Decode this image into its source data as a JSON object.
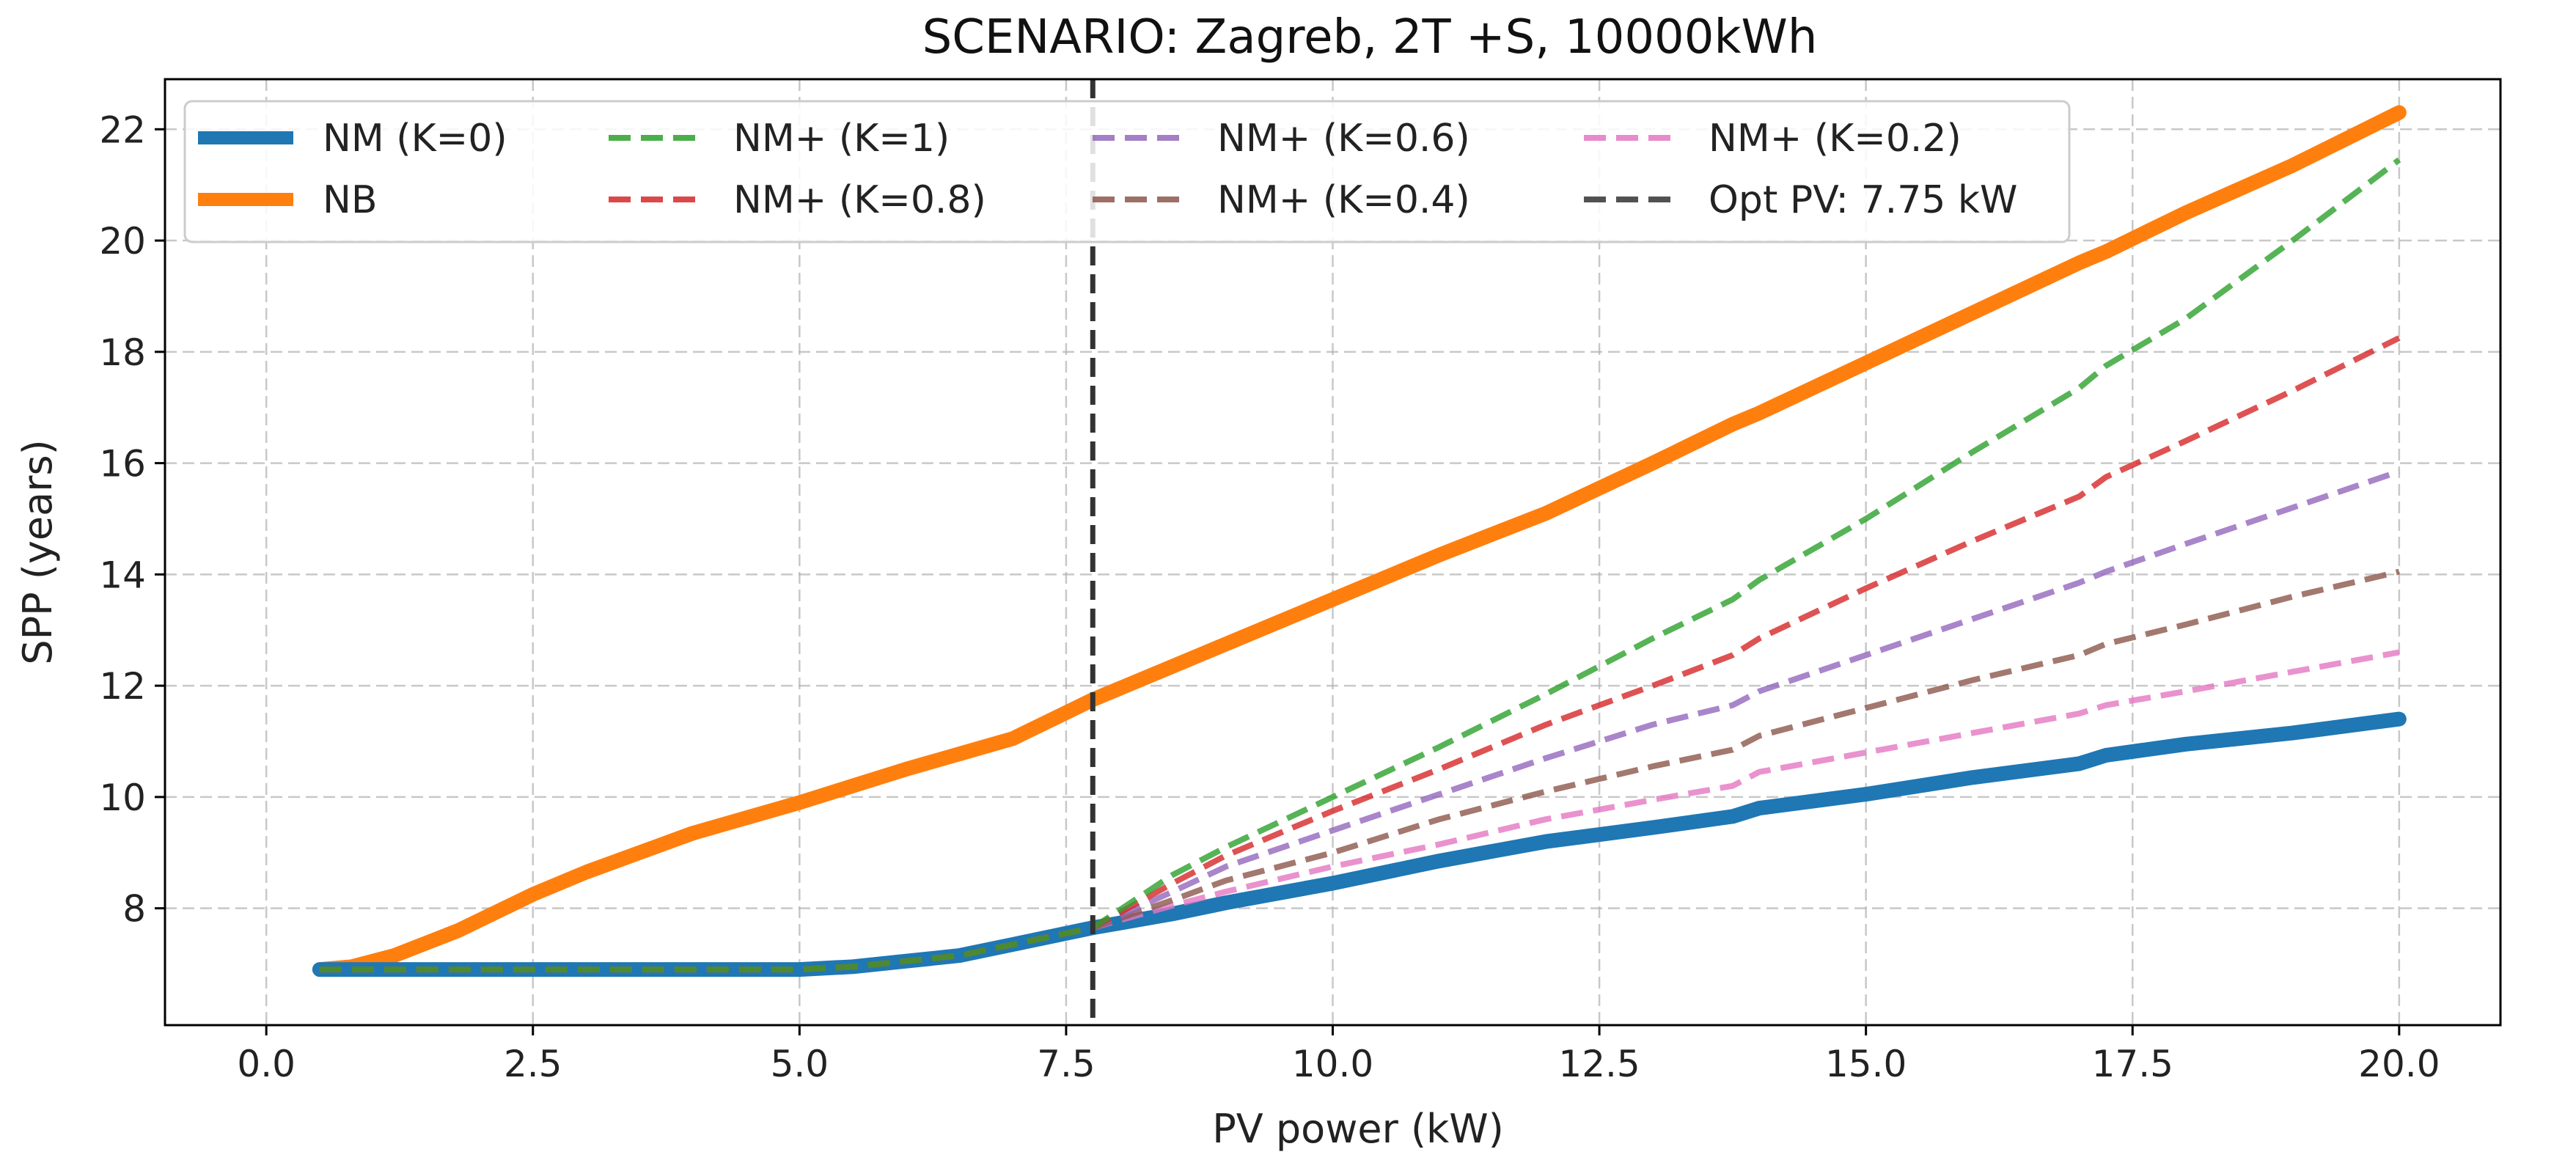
{
  "chart_data": {
    "type": "line",
    "title": "SCENARIO: Zagreb, 2T +S, 10000kWh",
    "xlabel": "PV power (kW)",
    "ylabel": "SPP (years)",
    "xlim": [
      -0.95,
      20.95
    ],
    "ylim": [
      5.9,
      22.9
    ],
    "xticks": [
      0.0,
      2.5,
      5.0,
      7.5,
      10.0,
      12.5,
      15.0,
      17.5,
      20.0
    ],
    "xtick_labels": [
      "0.0",
      "2.5",
      "5.0",
      "7.5",
      "10.0",
      "12.5",
      "15.0",
      "17.5",
      "20.0"
    ],
    "yticks": [
      8,
      10,
      12,
      14,
      16,
      18,
      20,
      22
    ],
    "ytick_labels": [
      "8",
      "10",
      "12",
      "14",
      "16",
      "18",
      "20",
      "22"
    ],
    "grid": true,
    "legend_position": "top-left",
    "legend_columns": 4,
    "vline": {
      "x": 7.75,
      "label": "Opt PV: 7.75 kW",
      "color": "#333333"
    },
    "series": [
      {
        "name": "NM (K=0)",
        "color": "#1f77b4",
        "style": "solid",
        "weight": "thick",
        "x": [
          0.5,
          1.0,
          2.0,
          3.0,
          4.0,
          5.0,
          5.5,
          6.0,
          6.5,
          7.0,
          7.75,
          8.5,
          9.0,
          10.0,
          11.0,
          12.0,
          13.0,
          13.75,
          14.0,
          15.0,
          16.0,
          17.0,
          17.25,
          18.0,
          19.0,
          20.0
        ],
        "y": [
          6.9,
          6.9,
          6.9,
          6.9,
          6.9,
          6.9,
          6.95,
          7.05,
          7.15,
          7.35,
          7.65,
          7.9,
          8.1,
          8.45,
          8.85,
          9.2,
          9.45,
          9.65,
          9.8,
          10.05,
          10.35,
          10.6,
          10.75,
          10.95,
          11.15,
          11.4
        ]
      },
      {
        "name": "NB",
        "color": "#ff7f0e",
        "style": "solid",
        "weight": "thick",
        "x": [
          0.5,
          0.8,
          1.2,
          1.8,
          2.5,
          3.0,
          4.0,
          5.0,
          5.5,
          6.0,
          7.0,
          7.75,
          8.5,
          10.0,
          11.0,
          12.0,
          13.0,
          13.75,
          14.0,
          15.0,
          16.0,
          17.0,
          17.25,
          18.0,
          19.0,
          20.0
        ],
        "y": [
          6.9,
          6.95,
          7.15,
          7.6,
          8.25,
          8.65,
          9.35,
          9.9,
          10.2,
          10.5,
          11.05,
          11.75,
          12.35,
          13.55,
          14.35,
          15.1,
          16.0,
          16.7,
          16.9,
          17.8,
          18.7,
          19.6,
          19.8,
          20.5,
          21.35,
          22.3
        ]
      },
      {
        "name": "NM+ (K=1)",
        "color": "#2ca02c",
        "style": "dashed",
        "weight": "thin",
        "x": [
          0.5,
          1.0,
          2.0,
          3.0,
          4.0,
          5.0,
          5.5,
          6.0,
          6.5,
          7.0,
          7.75,
          8.5,
          9.0,
          10.0,
          11.0,
          12.0,
          13.0,
          13.75,
          14.0,
          15.0,
          16.0,
          17.0,
          17.25,
          18.0,
          19.0,
          20.0
        ],
        "y": [
          6.9,
          6.9,
          6.9,
          6.9,
          6.9,
          6.9,
          6.95,
          7.05,
          7.15,
          7.35,
          7.65,
          8.6,
          9.1,
          10.0,
          10.9,
          11.85,
          12.85,
          13.55,
          13.9,
          15.0,
          16.2,
          17.35,
          17.75,
          18.6,
          20.0,
          21.45
        ]
      },
      {
        "name": "NM+ (K=0.8)",
        "color": "#d62728",
        "style": "dashed",
        "weight": "thin",
        "x": [
          0.5,
          1.0,
          2.0,
          3.0,
          4.0,
          5.0,
          5.5,
          6.0,
          6.5,
          7.0,
          7.75,
          8.5,
          9.0,
          10.0,
          11.0,
          12.0,
          13.0,
          13.75,
          14.0,
          15.0,
          16.0,
          17.0,
          17.25,
          18.0,
          19.0,
          20.0
        ],
        "y": [
          6.9,
          6.9,
          6.9,
          6.9,
          6.9,
          6.9,
          6.95,
          7.05,
          7.15,
          7.35,
          7.65,
          8.45,
          8.95,
          9.75,
          10.5,
          11.3,
          12.0,
          12.55,
          12.85,
          13.75,
          14.6,
          15.4,
          15.75,
          16.4,
          17.3,
          18.25
        ]
      },
      {
        "name": "NM+ (K=0.6)",
        "color": "#9467bd",
        "style": "dashed",
        "weight": "thin",
        "x": [
          0.5,
          1.0,
          2.0,
          3.0,
          4.0,
          5.0,
          5.5,
          6.0,
          6.5,
          7.0,
          7.75,
          8.5,
          9.0,
          10.0,
          11.0,
          12.0,
          13.0,
          13.75,
          14.0,
          15.0,
          16.0,
          17.0,
          17.25,
          18.0,
          19.0,
          20.0
        ],
        "y": [
          6.9,
          6.9,
          6.9,
          6.9,
          6.9,
          6.9,
          6.95,
          7.05,
          7.15,
          7.35,
          7.65,
          8.3,
          8.75,
          9.4,
          10.05,
          10.7,
          11.3,
          11.65,
          11.9,
          12.55,
          13.2,
          13.85,
          14.05,
          14.55,
          15.2,
          15.85
        ]
      },
      {
        "name": "NM+ (K=0.4)",
        "color": "#8c564b",
        "style": "dashed",
        "weight": "thin",
        "x": [
          0.5,
          1.0,
          2.0,
          3.0,
          4.0,
          5.0,
          5.5,
          6.0,
          6.5,
          7.0,
          7.75,
          8.5,
          9.0,
          10.0,
          11.0,
          12.0,
          13.0,
          13.75,
          14.0,
          15.0,
          16.0,
          17.0,
          17.25,
          18.0,
          19.0,
          20.0
        ],
        "y": [
          6.9,
          6.9,
          6.9,
          6.9,
          6.9,
          6.9,
          6.95,
          7.05,
          7.15,
          7.35,
          7.65,
          8.15,
          8.5,
          9.0,
          9.6,
          10.1,
          10.55,
          10.85,
          11.1,
          11.6,
          12.1,
          12.55,
          12.75,
          13.1,
          13.6,
          14.05
        ]
      },
      {
        "name": "NM+ (K=0.2)",
        "color": "#e377c2",
        "style": "dashed",
        "weight": "thin",
        "x": [
          0.5,
          1.0,
          2.0,
          3.0,
          4.0,
          5.0,
          5.5,
          6.0,
          6.5,
          7.0,
          7.75,
          8.5,
          9.0,
          10.0,
          11.0,
          12.0,
          13.0,
          13.75,
          14.0,
          15.0,
          16.0,
          17.0,
          17.25,
          18.0,
          19.0,
          20.0
        ],
        "y": [
          6.9,
          6.9,
          6.9,
          6.9,
          6.9,
          6.9,
          6.95,
          7.05,
          7.15,
          7.35,
          7.65,
          8.05,
          8.3,
          8.75,
          9.15,
          9.6,
          9.95,
          10.2,
          10.45,
          10.8,
          11.15,
          11.5,
          11.65,
          11.9,
          12.25,
          12.6
        ]
      }
    ],
    "legend": [
      {
        "label": "NM (K=0)",
        "color": "#1f77b4",
        "style": "solid",
        "weight": "thick"
      },
      {
        "label": "NB",
        "color": "#ff7f0e",
        "style": "solid",
        "weight": "thick"
      },
      {
        "label": "NM+ (K=1)",
        "color": "#2ca02c",
        "style": "dashed",
        "weight": "thin"
      },
      {
        "label": "NM+ (K=0.8)",
        "color": "#d62728",
        "style": "dashed",
        "weight": "thin"
      },
      {
        "label": "NM+ (K=0.6)",
        "color": "#9467bd",
        "style": "dashed",
        "weight": "thin"
      },
      {
        "label": "NM+ (K=0.4)",
        "color": "#8c564b",
        "style": "dashed",
        "weight": "thin"
      },
      {
        "label": "NM+ (K=0.2)",
        "color": "#e377c2",
        "style": "dashed",
        "weight": "thin"
      },
      {
        "label": "Opt PV: 7.75 kW",
        "color": "#333333",
        "style": "dashed",
        "weight": "thin"
      }
    ]
  }
}
